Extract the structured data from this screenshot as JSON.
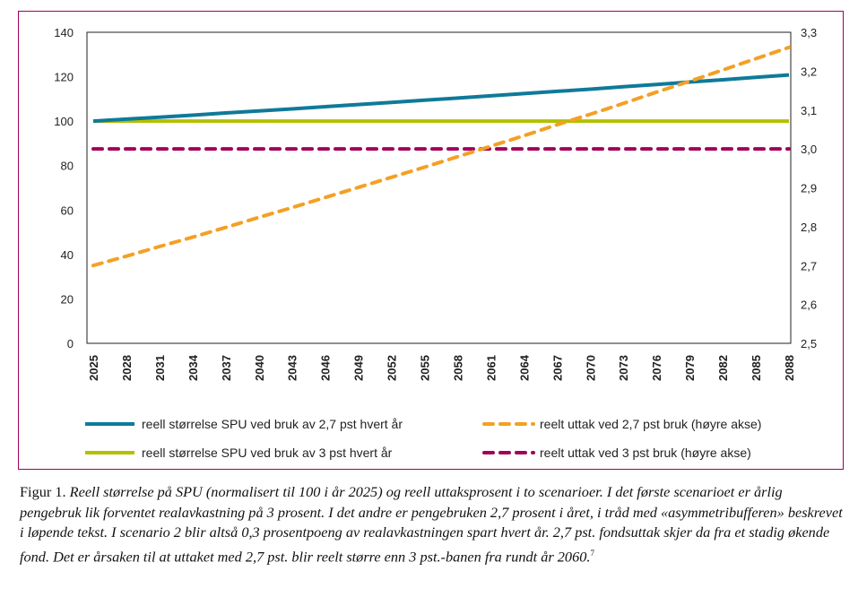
{
  "chart_data": {
    "type": "line",
    "x": [
      2025,
      2028,
      2031,
      2034,
      2037,
      2040,
      2043,
      2046,
      2049,
      2052,
      2055,
      2058,
      2061,
      2064,
      2067,
      2070,
      2073,
      2076,
      2079,
      2082,
      2085,
      2088
    ],
    "xlim": [
      2025,
      2088
    ],
    "ylim_left": [
      0,
      140
    ],
    "ylim_right": [
      2.5,
      3.3
    ],
    "left_ticks": [
      "0",
      "20",
      "40",
      "60",
      "80",
      "100",
      "120",
      "140"
    ],
    "right_ticks": [
      "2,5",
      "2,6",
      "2,7",
      "2,8",
      "2,9",
      "3,0",
      "3,1",
      "3,2",
      "3,3"
    ],
    "x_ticks": [
      "2025",
      "2028",
      "2031",
      "2034",
      "2037",
      "2040",
      "2043",
      "2046",
      "2049",
      "2052",
      "2055",
      "2058",
      "2061",
      "2064",
      "2067",
      "2070",
      "2073",
      "2076",
      "2079",
      "2082",
      "2085",
      "2088"
    ],
    "grid": false,
    "legend_position": "bottom",
    "series": [
      {
        "name": "reell størrelse SPU ved bruk av 2,7 pst hvert år",
        "axis": "left",
        "style": "solid",
        "color": "#0f7a99",
        "values": [
          100,
          100.9,
          101.8,
          102.7,
          103.7,
          104.6,
          105.5,
          106.5,
          107.5,
          108.4,
          109.4,
          110.4,
          111.4,
          112.4,
          113.4,
          114.4,
          115.5,
          116.5,
          117.6,
          118.6,
          119.7,
          120.8
        ]
      },
      {
        "name": "reell størrelse SPU ved bruk av 3 pst hvert år",
        "axis": "left",
        "style": "solid",
        "color": "#b3c000",
        "values": [
          100,
          100,
          100,
          100,
          100,
          100,
          100,
          100,
          100,
          100,
          100,
          100,
          100,
          100,
          100,
          100,
          100,
          100,
          100,
          100,
          100,
          100
        ]
      },
      {
        "name": "reelt uttak ved 2,7 pst bruk (høyre akse)",
        "axis": "right",
        "style": "dashed",
        "color": "#f4a025",
        "values": [
          2.7,
          2.724,
          2.749,
          2.773,
          2.798,
          2.824,
          2.849,
          2.875,
          2.901,
          2.927,
          2.953,
          2.98,
          3.007,
          3.034,
          3.062,
          3.089,
          3.117,
          3.146,
          3.174,
          3.203,
          3.232,
          3.261
        ]
      },
      {
        "name": "reelt uttak ved 3 pst bruk (høyre akse)",
        "axis": "right",
        "style": "dashed",
        "color": "#a0005a",
        "values": [
          3.0,
          3.0,
          3.0,
          3.0,
          3.0,
          3.0,
          3.0,
          3.0,
          3.0,
          3.0,
          3.0,
          3.0,
          3.0,
          3.0,
          3.0,
          3.0,
          3.0,
          3.0,
          3.0,
          3.0,
          3.0,
          3.0
        ]
      }
    ]
  },
  "caption": {
    "label": "Figur 1.",
    "text": "Reell størrelse på SPU (normalisert til 100 i år 2025) og reell uttaksprosent i to scenarioer. I det første scenarioet er årlig pengebruk lik forventet realavkastning på 3 prosent. I det andre er pengebruken 2,7 prosent i året, i tråd med «asymmetribufferen» beskrevet i løpende tekst. I scenario 2 blir altså 0,3 prosentpoeng av realavkastningen spart hvert år. 2,7 pst. fondsuttak skjer da fra et stadig økende fond. Det er årsaken til at uttaket med 2,7 pst. blir reelt større enn 3 pst.-banen fra rundt år 2060.",
    "footnote": "7"
  }
}
